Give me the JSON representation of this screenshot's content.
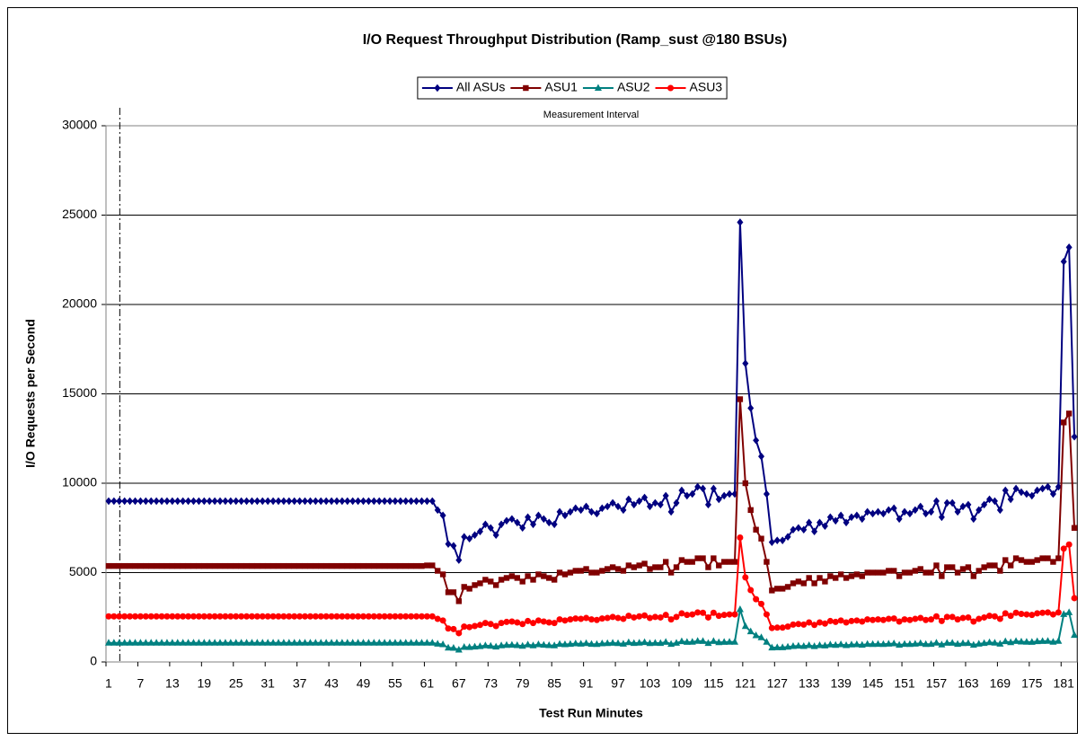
{
  "chart_data": {
    "type": "line",
    "title": "I/O Request Throughput Distribution (Ramp_sust @180 BSUs)",
    "x_label": "Test Run Minutes",
    "y_label": "I/O Requests per Second",
    "annotation": "Measurement Interval",
    "legend": "top",
    "grid": true,
    "ylim": [
      0,
      30000
    ],
    "yticks": [
      0,
      5000,
      10000,
      15000,
      20000,
      25000,
      30000
    ],
    "categories": [
      "1",
      null,
      null,
      null,
      null,
      null,
      "7",
      null,
      null,
      null,
      null,
      null,
      "13",
      null,
      null,
      null,
      null,
      null,
      "19",
      null,
      null,
      null,
      null,
      null,
      "25",
      null,
      null,
      null,
      null,
      null,
      "31",
      null,
      null,
      null,
      null,
      null,
      "37",
      null,
      null,
      null,
      null,
      null,
      "43",
      null,
      null,
      null,
      null,
      null,
      "49",
      null,
      null,
      null,
      null,
      null,
      "55",
      null,
      null,
      null,
      null,
      null,
      "61",
      null,
      null,
      null,
      null,
      null,
      "67",
      null,
      null,
      null,
      null,
      null,
      "73",
      null,
      null,
      null,
      null,
      null,
      "79",
      null,
      null,
      null,
      null,
      null,
      "85",
      null,
      null,
      null,
      null,
      null,
      "91",
      null,
      null,
      null,
      null,
      null,
      "97",
      null,
      null,
      null,
      null,
      null,
      "103",
      null,
      null,
      null,
      null,
      null,
      "109",
      null,
      null,
      null,
      null,
      null,
      "115",
      null,
      null,
      null,
      null,
      null,
      "121",
      null,
      null,
      null,
      null,
      null,
      "127",
      null,
      null,
      null,
      null,
      null,
      "133",
      null,
      null,
      null,
      null,
      null,
      "139",
      null,
      null,
      null,
      null,
      null,
      "145",
      null,
      null,
      null,
      null,
      null,
      "151",
      null,
      null,
      null,
      null,
      null,
      "157",
      null,
      null,
      null,
      null,
      null,
      "163",
      null,
      null,
      null,
      null,
      null,
      "169",
      null,
      null,
      null,
      null,
      null,
      "175",
      null,
      null,
      null,
      null,
      null,
      "181",
      null,
      null
    ],
    "series": [
      {
        "name": "All ASUs",
        "color": "#000080",
        "marker": "diamond",
        "values": [
          9000,
          9000,
          9000,
          9000,
          9000,
          9000,
          9000,
          9000,
          9000,
          9000,
          9000,
          9000,
          9000,
          9000,
          9000,
          9000,
          9000,
          9000,
          9000,
          9000,
          9000,
          9000,
          9000,
          9000,
          9000,
          9000,
          9000,
          9000,
          9000,
          9000,
          9000,
          9000,
          9000,
          9000,
          9000,
          9000,
          9000,
          9000,
          9000,
          9000,
          9000,
          9000,
          9000,
          9000,
          9000,
          9000,
          9000,
          9000,
          9000,
          9000,
          9000,
          9000,
          9000,
          9000,
          9000,
          9000,
          9000,
          9000,
          9000,
          9000,
          9000,
          9000,
          8500,
          8200,
          6600,
          6500,
          5700,
          7000,
          6900,
          7100,
          7300,
          7700,
          7500,
          7100,
          7700,
          7900,
          8000,
          7800,
          7500,
          8100,
          7700,
          8200,
          8000,
          7800,
          7700,
          8400,
          8200,
          8400,
          8600,
          8500,
          8700,
          8400,
          8300,
          8600,
          8700,
          8900,
          8700,
          8500,
          9100,
          8800,
          9000,
          9200,
          8700,
          8900,
          8800,
          9300,
          8400,
          8900,
          9600,
          9300,
          9400,
          9800,
          9700,
          8800,
          9700,
          9100,
          9300,
          9400,
          9400,
          24600,
          16700,
          14200,
          12400,
          11500,
          9400,
          6700,
          6800,
          6800,
          7000,
          7400,
          7500,
          7400,
          7800,
          7300,
          7800,
          7600,
          8100,
          7900,
          8200,
          7800,
          8100,
          8200,
          8000,
          8400,
          8300,
          8400,
          8300,
          8500,
          8600,
          8000,
          8400,
          8300,
          8500,
          8700,
          8300,
          8400,
          9000,
          8100,
          8900,
          8900,
          8400,
          8700,
          8800,
          8000,
          8500,
          8800,
          9100,
          9000,
          8500,
          9600,
          9100,
          9700,
          9500,
          9400,
          9300,
          9600,
          9700,
          9800,
          9400,
          9800,
          22400,
          23200,
          12600
        ]
      },
      {
        "name": "ASU1",
        "color": "#800000",
        "marker": "square",
        "values": [
          5370,
          5370,
          5370,
          5370,
          5370,
          5370,
          5370,
          5370,
          5370,
          5370,
          5370,
          5370,
          5370,
          5370,
          5370,
          5370,
          5370,
          5370,
          5370,
          5370,
          5370,
          5370,
          5370,
          5370,
          5370,
          5370,
          5370,
          5370,
          5370,
          5370,
          5370,
          5370,
          5370,
          5370,
          5370,
          5370,
          5370,
          5370,
          5370,
          5370,
          5370,
          5370,
          5370,
          5370,
          5370,
          5370,
          5370,
          5370,
          5370,
          5370,
          5370,
          5370,
          5370,
          5370,
          5370,
          5370,
          5370,
          5370,
          5370,
          5370,
          5400,
          5400,
          5100,
          4900,
          3900,
          3900,
          3400,
          4200,
          4100,
          4300,
          4400,
          4600,
          4500,
          4300,
          4600,
          4700,
          4800,
          4700,
          4500,
          4800,
          4600,
          4900,
          4800,
          4700,
          4600,
          5000,
          4900,
          5000,
          5100,
          5100,
          5200,
          5000,
          5000,
          5100,
          5200,
          5300,
          5200,
          5100,
          5400,
          5300,
          5400,
          5500,
          5200,
          5300,
          5300,
          5600,
          5000,
          5300,
          5700,
          5600,
          5600,
          5800,
          5800,
          5300,
          5800,
          5400,
          5600,
          5600,
          5600,
          14700,
          10000,
          8500,
          7400,
          6900,
          5600,
          4000,
          4100,
          4100,
          4200,
          4400,
          4500,
          4400,
          4700,
          4400,
          4700,
          4500,
          4800,
          4700,
          4900,
          4700,
          4800,
          4900,
          4800,
          5000,
          5000,
          5000,
          5000,
          5100,
          5100,
          4800,
          5000,
          5000,
          5100,
          5200,
          5000,
          5000,
          5400,
          4800,
          5300,
          5300,
          5000,
          5200,
          5300,
          4800,
          5100,
          5300,
          5400,
          5400,
          5100,
          5700,
          5400,
          5800,
          5700,
          5600,
          5600,
          5700,
          5800,
          5800,
          5600,
          5800,
          13400,
          13900,
          7500
        ]
      },
      {
        "name": "ASU2",
        "color": "#008080",
        "marker": "triangle",
        "values": [
          1070,
          1070,
          1070,
          1070,
          1070,
          1070,
          1070,
          1070,
          1070,
          1070,
          1070,
          1070,
          1070,
          1070,
          1070,
          1070,
          1070,
          1070,
          1070,
          1070,
          1070,
          1070,
          1070,
          1070,
          1070,
          1070,
          1070,
          1070,
          1070,
          1070,
          1070,
          1070,
          1070,
          1070,
          1070,
          1070,
          1070,
          1070,
          1070,
          1070,
          1070,
          1070,
          1070,
          1070,
          1070,
          1070,
          1070,
          1070,
          1070,
          1070,
          1070,
          1070,
          1070,
          1070,
          1070,
          1070,
          1070,
          1070,
          1070,
          1070,
          1070,
          1070,
          1010,
          980,
          790,
          780,
          680,
          830,
          820,
          850,
          870,
          920,
          890,
          850,
          920,
          940,
          950,
          930,
          890,
          970,
          920,
          980,
          950,
          930,
          920,
          1000,
          980,
          1000,
          1030,
          1010,
          1040,
          1000,
          990,
          1030,
          1040,
          1060,
          1040,
          1010,
          1090,
          1050,
          1070,
          1100,
          1040,
          1060,
          1050,
          1110,
          1000,
          1060,
          1150,
          1110,
          1120,
          1170,
          1160,
          1050,
          1160,
          1090,
          1110,
          1120,
          1120,
          2940,
          2000,
          1700,
          1480,
          1370,
          1120,
          800,
          810,
          810,
          840,
          880,
          900,
          880,
          930,
          870,
          930,
          910,
          970,
          940,
          980,
          930,
          970,
          980,
          950,
          1000,
          990,
          1000,
          990,
          1010,
          1030,
          950,
          1000,
          990,
          1010,
          1040,
          990,
          1000,
          1070,
          970,
          1060,
          1060,
          1000,
          1040,
          1050,
          950,
          1010,
          1050,
          1090,
          1070,
          1010,
          1150,
          1090,
          1160,
          1130,
          1120,
          1110,
          1150,
          1160,
          1170,
          1120,
          1170,
          2670,
          2770,
          1500
        ]
      },
      {
        "name": "ASU3",
        "color": "#ff0000",
        "marker": "circle",
        "values": [
          2550,
          2550,
          2550,
          2550,
          2550,
          2550,
          2550,
          2550,
          2550,
          2550,
          2550,
          2550,
          2550,
          2550,
          2550,
          2550,
          2550,
          2550,
          2550,
          2550,
          2550,
          2550,
          2550,
          2550,
          2550,
          2550,
          2550,
          2550,
          2550,
          2550,
          2550,
          2550,
          2550,
          2550,
          2550,
          2550,
          2550,
          2550,
          2550,
          2550,
          2550,
          2550,
          2550,
          2550,
          2550,
          2550,
          2550,
          2550,
          2550,
          2550,
          2550,
          2550,
          2550,
          2550,
          2550,
          2550,
          2550,
          2550,
          2550,
          2550,
          2550,
          2550,
          2410,
          2320,
          1870,
          1840,
          1610,
          1980,
          1950,
          2010,
          2070,
          2180,
          2120,
          2010,
          2180,
          2240,
          2260,
          2210,
          2120,
          2290,
          2180,
          2320,
          2260,
          2210,
          2180,
          2380,
          2320,
          2380,
          2430,
          2410,
          2460,
          2380,
          2350,
          2430,
          2460,
          2520,
          2460,
          2410,
          2580,
          2490,
          2550,
          2600,
          2460,
          2520,
          2490,
          2630,
          2380,
          2520,
          2720,
          2630,
          2660,
          2770,
          2750,
          2490,
          2750,
          2580,
          2630,
          2660,
          2660,
          6960,
          4730,
          4020,
          3510,
          3250,
          2660,
          1900,
          1920,
          1920,
          1980,
          2090,
          2120,
          2090,
          2210,
          2070,
          2210,
          2150,
          2290,
          2240,
          2320,
          2210,
          2290,
          2320,
          2260,
          2380,
          2350,
          2380,
          2350,
          2410,
          2430,
          2260,
          2380,
          2350,
          2410,
          2460,
          2350,
          2380,
          2550,
          2290,
          2520,
          2520,
          2380,
          2460,
          2490,
          2260,
          2410,
          2490,
          2580,
          2550,
          2410,
          2720,
          2580,
          2750,
          2690,
          2660,
          2630,
          2720,
          2750,
          2770,
          2660,
          2770,
          6340,
          6570,
          3570
        ]
      }
    ]
  }
}
